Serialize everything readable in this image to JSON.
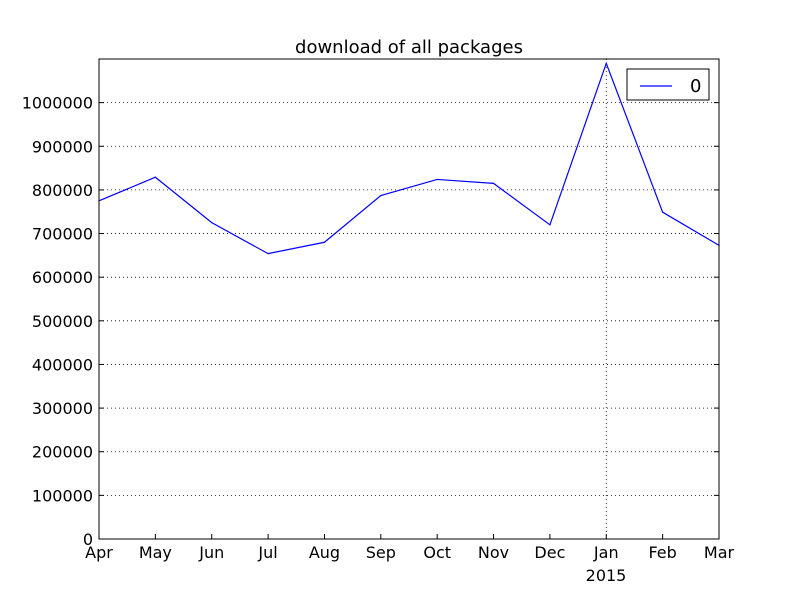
{
  "chart_data": {
    "type": "line",
    "title": "download of all packages",
    "xlabel": "",
    "ylabel": "",
    "x": [
      "2014-04",
      "2014-05",
      "2014-06",
      "2014-07",
      "2014-08",
      "2014-09",
      "2014-10",
      "2014-11",
      "2014-12",
      "2015-01",
      "2015-02",
      "2015-03"
    ],
    "x_tick_labels": [
      "Apr",
      "May",
      "Jun",
      "Jul",
      "Aug",
      "Sep",
      "Oct",
      "Nov",
      "Dec",
      "Jan",
      "Feb",
      "Mar"
    ],
    "x_secondary_label": "2015",
    "series": [
      {
        "name": "0",
        "color": "#0000ff",
        "values": [
          775000,
          829000,
          725000,
          654000,
          680000,
          787000,
          824000,
          815000,
          720000,
          1090000,
          749000,
          673000
        ]
      }
    ],
    "ylim": [
      0,
      1100000
    ],
    "y_ticks": [
      0,
      100000,
      200000,
      300000,
      400000,
      500000,
      600000,
      700000,
      800000,
      900000,
      1000000
    ],
    "y_tick_labels": [
      "0",
      "100000",
      "200000",
      "300000",
      "400000",
      "500000",
      "600000",
      "700000",
      "800000",
      "900000",
      "1000000"
    ],
    "grid": true,
    "vertical_grid_at": [
      "2015-01"
    ],
    "legend_position": "top-right"
  }
}
